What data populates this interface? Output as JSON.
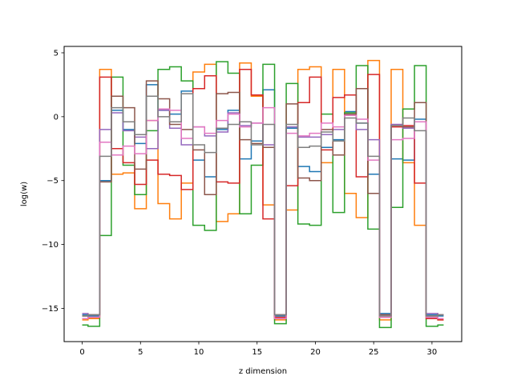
{
  "chart_data": {
    "type": "line",
    "step": "mid",
    "xlabel": "z dimension",
    "ylabel": "log(w)",
    "xlim": [
      -1.55,
      32.55
    ],
    "ylim": [
      -17.6,
      5.5
    ],
    "xticks": [
      0,
      5,
      10,
      15,
      20,
      25,
      30
    ],
    "yticks": [
      5,
      0,
      -5,
      -10,
      -15
    ],
    "ytick_labels": [
      "5",
      "0",
      "−5",
      "−10",
      "−15"
    ],
    "x": [
      0,
      1,
      2,
      3,
      4,
      5,
      6,
      7,
      8,
      9,
      10,
      11,
      12,
      13,
      14,
      15,
      16,
      17,
      18,
      19,
      20,
      21,
      22,
      23,
      24,
      25,
      26,
      27,
      28,
      29,
      30,
      31
    ],
    "series": [
      {
        "color": "#1f77b4",
        "values": [
          -15.5,
          -15.6,
          -5.0,
          0.5,
          -1.0,
          -2.1,
          2.5,
          0.5,
          0.2,
          2.0,
          -3.4,
          -4.7,
          -1.0,
          0.5,
          -3.3,
          -1.9,
          2.1,
          -15.6,
          -0.9,
          -3.9,
          -4.3,
          -2.4,
          -1.8,
          0.4,
          -0.5,
          -4.5,
          -15.4,
          -3.3,
          -3.4,
          -0.2,
          -15.5,
          -15.6
        ]
      },
      {
        "color": "#ff7f0e",
        "values": [
          -15.9,
          -15.8,
          3.7,
          -4.5,
          -4.4,
          -7.2,
          -0.3,
          -6.8,
          -8.0,
          -5.2,
          3.5,
          4.1,
          -8.2,
          -7.6,
          4.2,
          1.6,
          -6.9,
          -15.9,
          -7.3,
          3.7,
          3.9,
          -3.6,
          3.7,
          -6.0,
          -7.9,
          4.4,
          -15.9,
          3.7,
          -3.6,
          -8.5,
          -15.8,
          -15.9
        ]
      },
      {
        "color": "#2ca02c",
        "values": [
          -16.3,
          -16.4,
          -9.3,
          3.1,
          -3.8,
          -6.1,
          -1.1,
          3.7,
          3.9,
          2.8,
          -8.5,
          -8.9,
          4.3,
          3.4,
          -7.6,
          -3.8,
          4.1,
          -16.2,
          2.6,
          -8.4,
          -8.5,
          0.2,
          -7.5,
          0.3,
          4.0,
          -8.8,
          -16.5,
          -7.1,
          0.6,
          4.0,
          -16.4,
          -16.3
        ]
      },
      {
        "color": "#d62728",
        "values": [
          -15.8,
          -15.7,
          3.1,
          -2.5,
          -3.6,
          -5.3,
          -3.4,
          -4.5,
          -4.6,
          -5.7,
          2.2,
          3.2,
          -5.1,
          -5.2,
          3.7,
          1.7,
          -8.0,
          -15.7,
          -5.4,
          1.1,
          3.1,
          -2.6,
          1.5,
          1.7,
          -4.7,
          3.3,
          -15.7,
          -0.8,
          -0.7,
          -5.2,
          -15.8,
          -15.9
        ]
      },
      {
        "color": "#9467bd",
        "values": [
          -15.4,
          -15.5,
          -1.0,
          0.3,
          -1.1,
          -1.6,
          -2.5,
          0.5,
          -0.9,
          -2.2,
          -0.8,
          -1.5,
          -1.2,
          0.3,
          -0.7,
          -0.5,
          -2.2,
          -15.5,
          -0.8,
          -1.6,
          -1.6,
          -1.4,
          -1.0,
          0.1,
          -1.0,
          -1.8,
          -15.5,
          -0.6,
          -0.9,
          -0.4,
          -15.4,
          -15.5
        ]
      },
      {
        "color": "#8c564b",
        "values": [
          -15.6,
          -15.5,
          -5.1,
          1.6,
          0.7,
          -4.1,
          2.8,
          1.4,
          -0.6,
          -1.0,
          -2.6,
          -6.1,
          1.8,
          1.9,
          -1.8,
          -2.1,
          -2.4,
          -15.5,
          1.0,
          -4.8,
          -5.0,
          -1.0,
          -3.0,
          0.2,
          2.2,
          -6.0,
          -15.5,
          -0.7,
          -0.8,
          1.1,
          -15.6,
          -15.5
        ]
      },
      {
        "color": "#e377c2",
        "values": [
          -15.8,
          -15.7,
          -2.0,
          -3.0,
          -2.3,
          -2.9,
          -0.3,
          0.6,
          0.5,
          -1.7,
          -0.8,
          -1.3,
          -0.3,
          0.2,
          -0.8,
          -0.5,
          0.7,
          -15.8,
          -1.3,
          -1.5,
          -1.3,
          -0.5,
          -0.8,
          0.1,
          -0.2,
          -3.4,
          -15.7,
          -1.8,
          -1.7,
          -0.4,
          -15.7,
          -15.8
        ]
      },
      {
        "color": "#7f7f7f",
        "values": [
          -15.6,
          -15.5,
          -3.1,
          0.7,
          -0.4,
          -1.4,
          1.6,
          0.0,
          -0.4,
          1.8,
          -2.2,
          -2.8,
          -0.9,
          -0.6,
          -0.4,
          -2.2,
          -0.6,
          -15.5,
          -0.6,
          -2.4,
          -2.3,
          -1.2,
          -1.9,
          -0.1,
          -0.5,
          -3.1,
          -15.6,
          -0.7,
          -0.1,
          -1.1,
          -15.6,
          -15.5
        ]
      }
    ]
  }
}
